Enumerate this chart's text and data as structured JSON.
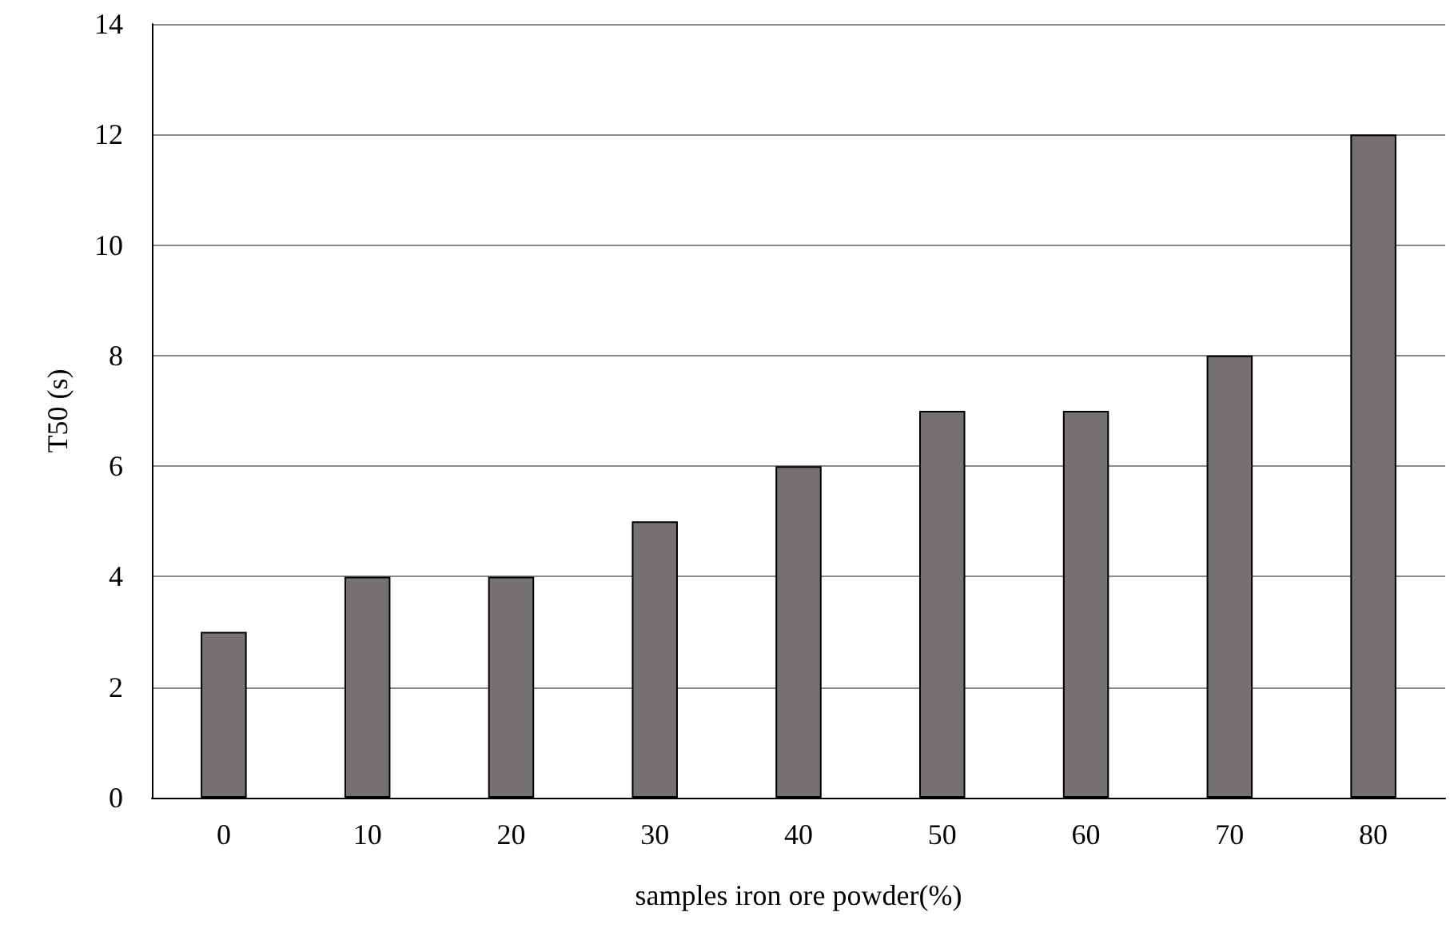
{
  "chart_data": {
    "type": "bar",
    "xlabel": "samples iron ore powder(%)",
    "ylabel": "T50 (s)",
    "categories": [
      "0",
      "10",
      "20",
      "30",
      "40",
      "50",
      "60",
      "70",
      "80"
    ],
    "values": [
      3,
      4,
      4,
      5,
      6,
      7,
      7,
      8,
      12
    ],
    "color": "#767171",
    "ylim": [
      0,
      14
    ],
    "yticks": [
      0,
      2,
      4,
      6,
      8,
      10,
      12,
      14
    ],
    "grid": "y"
  }
}
